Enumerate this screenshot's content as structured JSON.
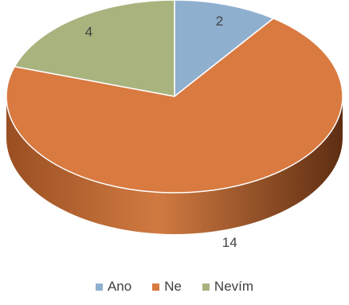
{
  "chart_data": {
    "type": "pie",
    "categories": [
      "Ano",
      "Ne",
      "Nevím"
    ],
    "values": [
      2,
      14,
      4
    ],
    "data_labels": [
      "2",
      "14",
      "4"
    ],
    "colors": [
      "#8FAFCF",
      "#D97A41",
      "#A8B37E"
    ],
    "title": "",
    "legend_position": "bottom",
    "style": "3d"
  }
}
